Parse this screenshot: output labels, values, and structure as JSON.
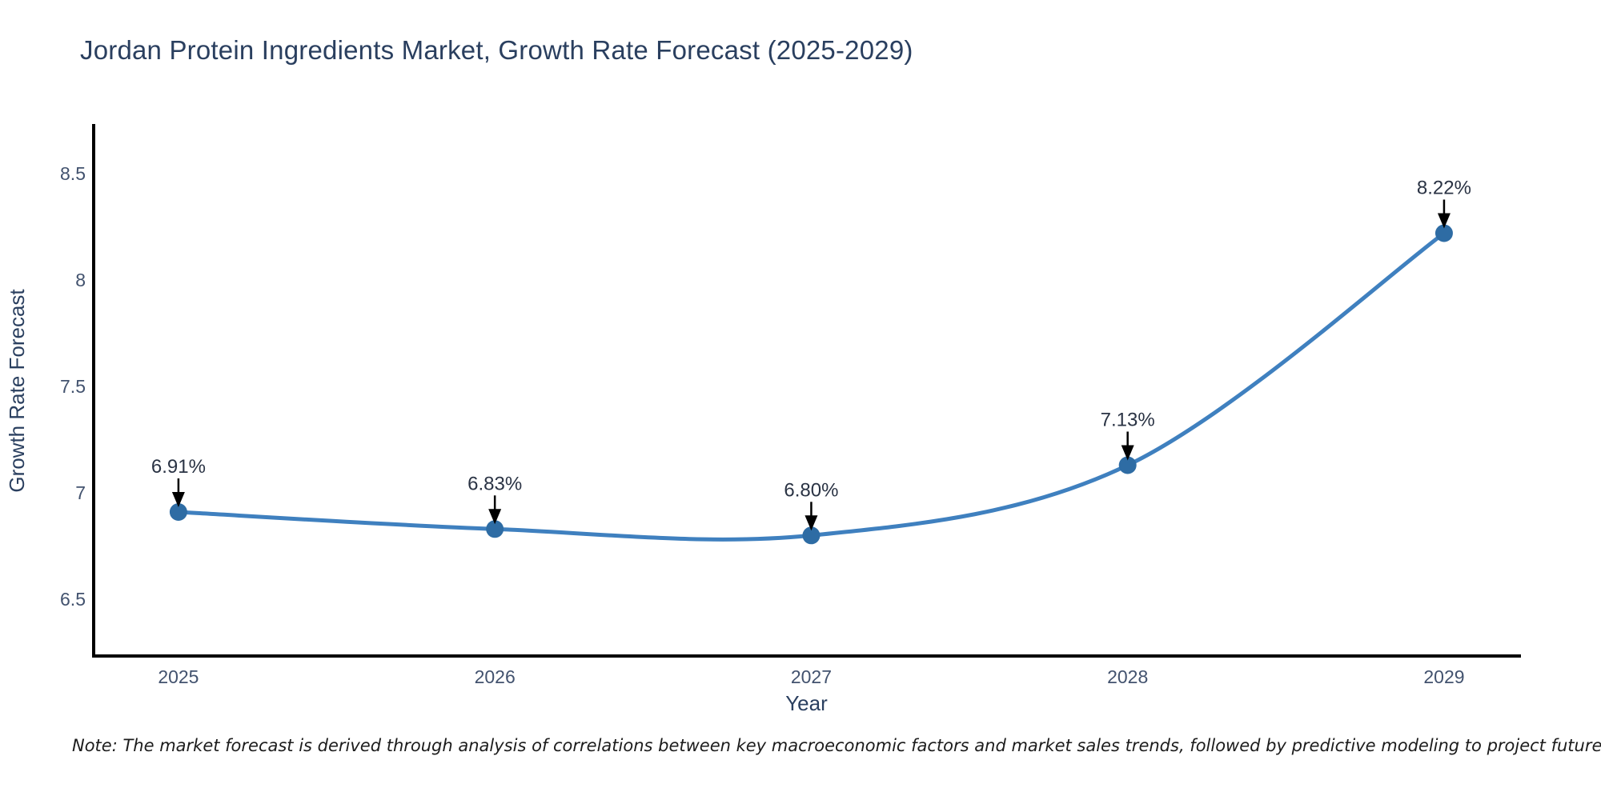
{
  "chart_data": {
    "type": "line",
    "line_shape": "spline",
    "title": "Jordan Protein Ingredients Market, Growth Rate Forecast (2025-2029)",
    "xlabel": "Year",
    "ylabel": "Growth Rate Forecast",
    "x": [
      2025,
      2026,
      2027,
      2028,
      2029
    ],
    "values": [
      6.91,
      6.83,
      6.8,
      7.13,
      8.22
    ],
    "point_labels": [
      "6.91%",
      "6.83%",
      "6.80%",
      "7.13%",
      "8.22%"
    ],
    "x_tick_labels": [
      "2025",
      "2026",
      "2027",
      "2028",
      "2029"
    ],
    "y_ticks": [
      6.5,
      7.0,
      7.5,
      8.0,
      8.5
    ],
    "y_tick_labels": [
      "6.5",
      "7",
      "7.5",
      "8",
      "8.5"
    ],
    "xlim": [
      2024.727,
      2029.243
    ],
    "ylim": [
      6.226,
      8.733
    ],
    "grid": false,
    "legend": "none",
    "colors": {
      "line": "#3f80bf",
      "marker": "#2e6ca4",
      "axis_line": "#000000",
      "title_text": "#2a3f5f",
      "tick_text": "#42526e",
      "axis_title_text": "#2a3f5f",
      "annotation_text": "#2a3344",
      "arrow": "#000000",
      "background": "#ffffff"
    }
  },
  "note": {
    "text": "Note: The market forecast is derived through analysis of correlations between key macroeconomic factors and market sales trends, followed by predictive modeling to project future sales"
  }
}
